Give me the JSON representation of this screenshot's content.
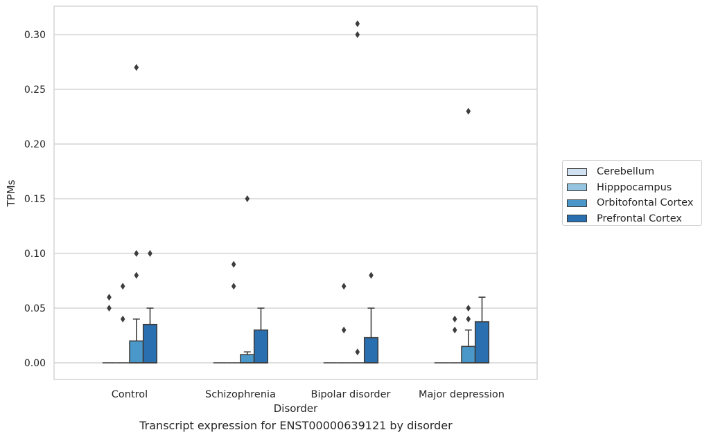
{
  "chart_data": {
    "type": "box",
    "xlabel": "Disorder",
    "ylabel": "TPMs",
    "categories": [
      "Control",
      "Schizophrenia",
      "Bipolar disorder",
      "Major depression"
    ],
    "ylim": [
      -0.015,
      0.325
    ],
    "yticks": [
      0.0,
      0.05,
      0.1,
      0.15,
      0.2,
      0.25,
      0.3
    ],
    "ytick_labels": [
      "0.00",
      "0.05",
      "0.10",
      "0.15",
      "0.20",
      "0.25",
      "0.30"
    ],
    "grid": "horizontal",
    "legend_position": "right",
    "series": [
      {
        "name": "Cerebellum",
        "color": "#d0e1f2",
        "boxes": [
          {
            "q1": 0,
            "median": 0,
            "q3": 0,
            "whisker_low": 0,
            "whisker_high": 0,
            "outliers": [
              0.06,
              0.05
            ]
          },
          {
            "q1": 0,
            "median": 0,
            "q3": 0,
            "whisker_low": 0,
            "whisker_high": 0,
            "outliers": []
          },
          {
            "q1": 0,
            "median": 0,
            "q3": 0,
            "whisker_low": 0,
            "whisker_high": 0,
            "outliers": []
          },
          {
            "q1": 0,
            "median": 0,
            "q3": 0,
            "whisker_low": 0,
            "whisker_high": 0,
            "outliers": []
          }
        ]
      },
      {
        "name": "Hipppocampus",
        "color": "#94c4df",
        "boxes": [
          {
            "q1": 0,
            "median": 0,
            "q3": 0,
            "whisker_low": 0,
            "whisker_high": 0,
            "outliers": [
              0.07,
              0.04
            ]
          },
          {
            "q1": 0,
            "median": 0,
            "q3": 0,
            "whisker_low": 0,
            "whisker_high": 0,
            "outliers": [
              0.09,
              0.07
            ]
          },
          {
            "q1": 0,
            "median": 0,
            "q3": 0,
            "whisker_low": 0,
            "whisker_high": 0,
            "outliers": [
              0.07,
              0.03
            ]
          },
          {
            "q1": 0,
            "median": 0,
            "q3": 0,
            "whisker_low": 0,
            "whisker_high": 0,
            "outliers": [
              0.04,
              0.03
            ]
          }
        ]
      },
      {
        "name": "Orbitofontal Cortex",
        "color": "#4a98c9",
        "boxes": [
          {
            "q1": 0,
            "median": 0,
            "q3": 0.02,
            "whisker_low": 0,
            "whisker_high": 0.04,
            "outliers": [
              0.27,
              0.1,
              0.08
            ]
          },
          {
            "q1": 0,
            "median": 0,
            "q3": 0.0075,
            "whisker_low": 0,
            "whisker_high": 0.01,
            "outliers": [
              0.15
            ]
          },
          {
            "q1": 0,
            "median": 0,
            "q3": 0,
            "whisker_low": 0,
            "whisker_high": 0,
            "outliers": [
              0.31,
              0.3,
              0.01
            ]
          },
          {
            "q1": 0,
            "median": 0,
            "q3": 0.015,
            "whisker_low": 0,
            "whisker_high": 0.03,
            "outliers": [
              0.23,
              0.05,
              0.04
            ]
          }
        ]
      },
      {
        "name": "Prefrontal Cortex",
        "color": "#2a6fb0",
        "boxes": [
          {
            "q1": 0,
            "median": 0,
            "q3": 0.035,
            "whisker_low": 0,
            "whisker_high": 0.05,
            "outliers": [
              0.1
            ]
          },
          {
            "q1": 0,
            "median": 0,
            "q3": 0.03,
            "whisker_low": 0,
            "whisker_high": 0.05,
            "outliers": []
          },
          {
            "q1": 0,
            "median": 0,
            "q3": 0.023,
            "whisker_low": 0,
            "whisker_high": 0.05,
            "outliers": [
              0.08
            ]
          },
          {
            "q1": 0,
            "median": 0,
            "q3": 0.0375,
            "whisker_low": 0,
            "whisker_high": 0.06,
            "outliers": []
          }
        ]
      }
    ]
  },
  "caption": "Transcript expression for ENST00000639121 by disorder",
  "colors": {
    "grid": "#cccccc",
    "spine": "#cccccc",
    "line": "#3d3d3d",
    "text": "#262626"
  }
}
